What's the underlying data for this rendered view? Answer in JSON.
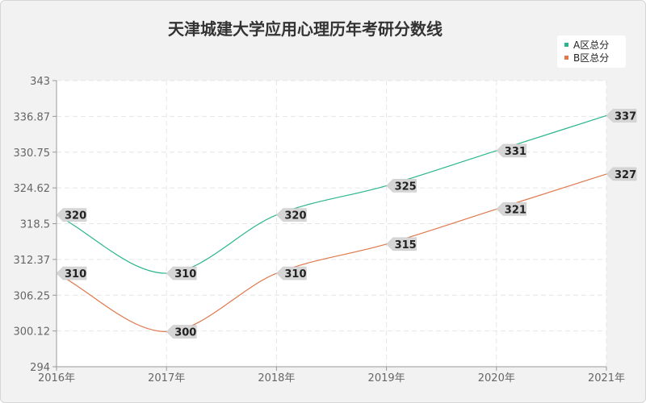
{
  "chart_data": {
    "type": "line",
    "title": "天津城建大学应用心理历年考研分数线",
    "xlabel": "",
    "ylabel": "",
    "categories": [
      "2016年",
      "2017年",
      "2018年",
      "2019年",
      "2020年",
      "2021年"
    ],
    "y_ticks": [
      "294",
      "300.12",
      "306.25",
      "312.37",
      "318.5",
      "324.62",
      "330.75",
      "336.87",
      "343"
    ],
    "ylim": [
      294,
      343
    ],
    "grid": true,
    "legend_position": "top-right",
    "series": [
      {
        "name": "A区总分",
        "color": "#2bb58f",
        "values": [
          320,
          310,
          320,
          325,
          331,
          337
        ]
      },
      {
        "name": "B区总分",
        "color": "#e0784b",
        "values": [
          310,
          300,
          310,
          315,
          321,
          327
        ]
      }
    ]
  }
}
